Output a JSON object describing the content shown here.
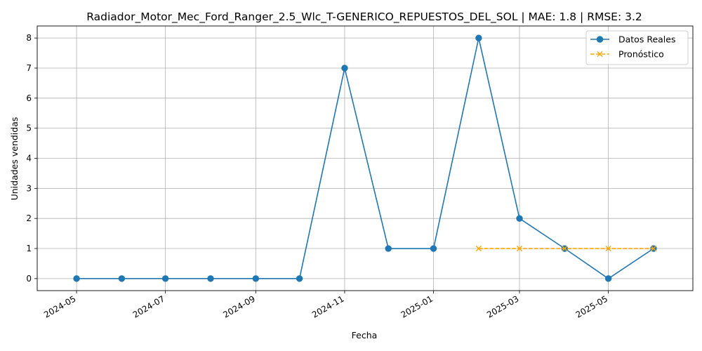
{
  "chart_data": {
    "type": "line",
    "title": "Radiador_Motor_Mec_Ford_Ranger_2.5_Wlc_T-GENERICO_REPUESTOS_DEL_SOL | MAE: 1.8 | RMSE: 3.2",
    "xlabel": "Fecha",
    "ylabel": "Unidades vendidas",
    "x_axis": "date",
    "xlim": [
      "2024-04-04",
      "2025-06-28"
    ],
    "ylim": [
      -0.4,
      8.4
    ],
    "x_ticks": [
      "2024-05",
      "2024-07",
      "2024-09",
      "2024-11",
      "2025-01",
      "2025-03",
      "2025-05"
    ],
    "y_ticks": [
      0,
      1,
      2,
      3,
      4,
      5,
      6,
      7,
      8
    ],
    "grid": true,
    "legend_position": "top-right",
    "series": [
      {
        "name": "Datos Reales",
        "color": "#1f77b4",
        "marker": "circle",
        "line_style": "solid",
        "x": [
          "2024-05-01",
          "2024-06-01",
          "2024-07-01",
          "2024-08-01",
          "2024-09-01",
          "2024-10-01",
          "2024-11-01",
          "2024-12-01",
          "2025-01-01",
          "2025-02-01",
          "2025-03-01",
          "2025-04-01",
          "2025-05-01",
          "2025-06-01"
        ],
        "values": [
          0,
          0,
          0,
          0,
          0,
          0,
          7,
          1,
          1,
          8,
          2,
          1,
          0,
          1
        ]
      },
      {
        "name": "Pronóstico",
        "color": "#ffa500",
        "marker": "x",
        "line_style": "dashed",
        "x": [
          "2025-02-01",
          "2025-03-01",
          "2025-04-01",
          "2025-05-01",
          "2025-06-01"
        ],
        "values": [
          1,
          1,
          1,
          1,
          1
        ]
      }
    ]
  }
}
